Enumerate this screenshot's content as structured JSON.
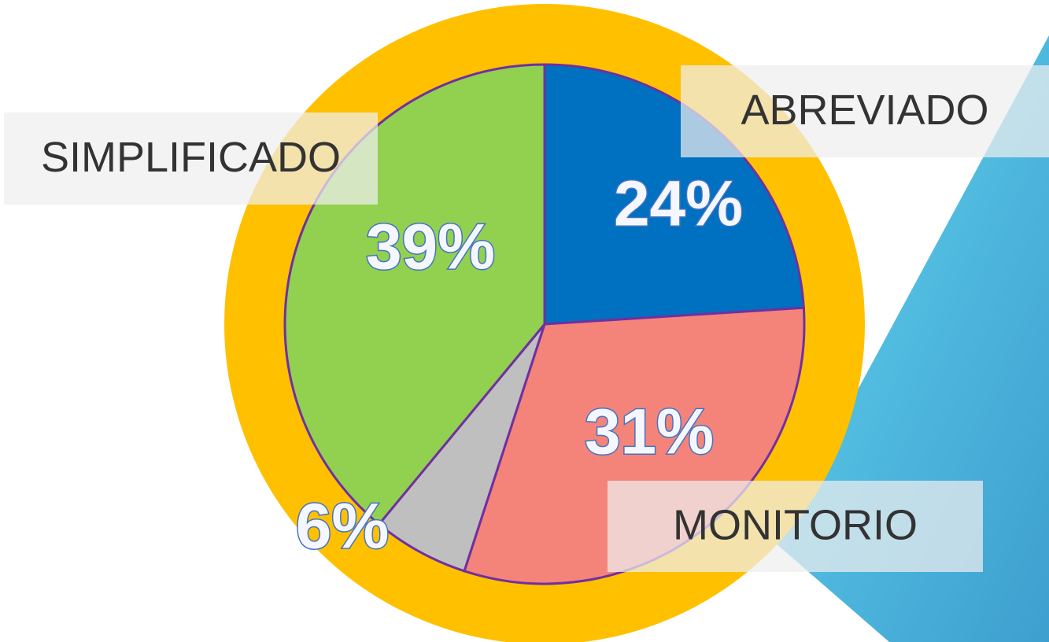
{
  "chart_data": {
    "type": "pie",
    "categories": [
      "ABREVIADO",
      "MONITORIO",
      null,
      "SIMPLIFICADO"
    ],
    "values": [
      24,
      31,
      6,
      39
    ],
    "value_labels": [
      "24%",
      "31%",
      "6%",
      "39%"
    ],
    "colors": [
      "#0070c0",
      "#f4847a",
      "#bfbfbf",
      "#92d050"
    ]
  }
}
